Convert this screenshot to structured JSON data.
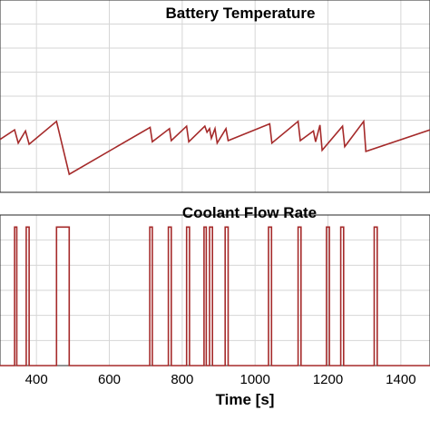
{
  "chart_data": [
    {
      "type": "line",
      "title": "Battery Temperature",
      "xlim": [
        300,
        1480
      ],
      "ylim": [
        0,
        8
      ],
      "grid": true,
      "series": [
        {
          "color": "#a52a2a",
          "x": [
            300,
            340,
            350,
            370,
            380,
            455,
            490,
            712,
            718,
            765,
            770,
            812,
            818,
            862,
            868,
            875,
            880,
            890,
            896,
            920,
            926,
            1040,
            1046,
            1118,
            1124,
            1160,
            1166,
            1178,
            1184,
            1240,
            1246,
            1298,
            1304,
            1480
          ],
          "y": [
            2.2,
            2.6,
            2.05,
            2.55,
            2.0,
            2.95,
            0.75,
            2.7,
            2.1,
            2.65,
            2.15,
            2.75,
            2.1,
            2.75,
            2.5,
            2.65,
            2.25,
            2.65,
            2.05,
            2.65,
            2.15,
            2.85,
            2.05,
            2.95,
            2.15,
            2.55,
            2.1,
            2.8,
            1.75,
            2.75,
            1.9,
            2.95,
            1.7,
            2.6
          ]
        }
      ]
    },
    {
      "type": "line",
      "title": "Coolant Flow Rate",
      "xlabel": "Time [s]",
      "xlim": [
        300,
        1480
      ],
      "ylim": [
        0,
        1
      ],
      "xticks": [
        400,
        600,
        800,
        1000,
        1200,
        1400
      ],
      "xtick_labels": [
        "400",
        "600",
        "800",
        "1000",
        "1200",
        "1400"
      ],
      "grid": true,
      "series": [
        {
          "color": "#a52a2a",
          "pulses": [
            [
              340,
              346
            ],
            [
              372,
              380
            ],
            [
              455,
              490
            ],
            [
              711,
              718
            ],
            [
              762,
              770
            ],
            [
              812,
              820
            ],
            [
              860,
              866
            ],
            [
              875,
              883
            ],
            [
              918,
              926
            ],
            [
              1037,
              1045
            ],
            [
              1118,
              1126
            ],
            [
              1196,
              1204
            ],
            [
              1235,
              1243
            ],
            [
              1327,
              1335
            ]
          ],
          "low": 0.0,
          "high": 0.92
        }
      ]
    }
  ]
}
